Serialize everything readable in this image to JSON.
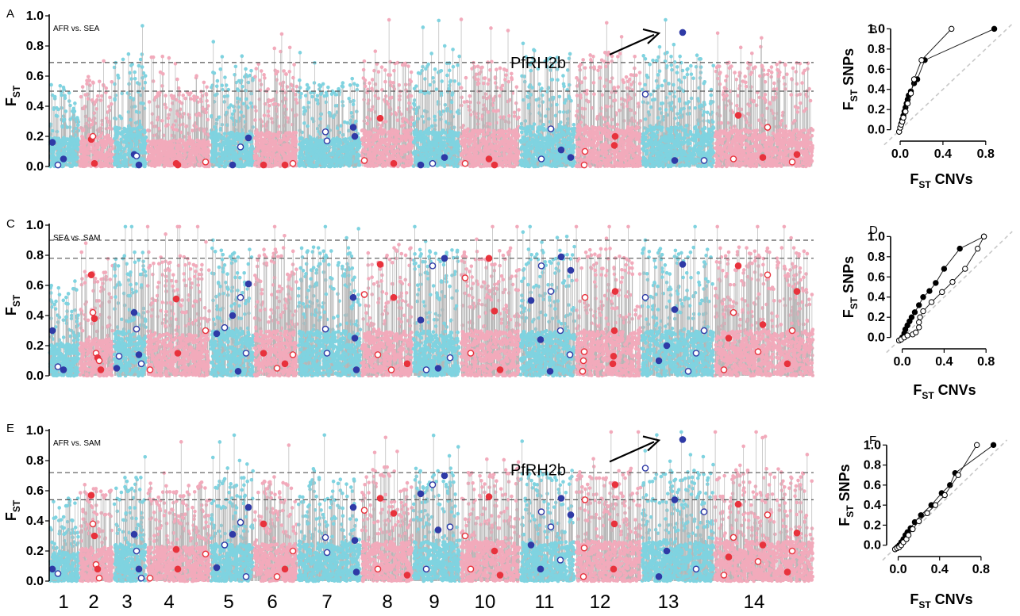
{
  "figure": {
    "chromosome_labels": [
      "1",
      "2",
      "3",
      "4",
      "5",
      "6",
      "7",
      "8",
      "9",
      "10",
      "11",
      "12",
      "13",
      "14"
    ],
    "colors": {
      "snp_blue": "#7fd3e0",
      "snp_pink": "#f2aabb",
      "stem_gray": "#b7b7b7",
      "cnv_blue": "#2f3aa6",
      "cnv_red": "#e8323c",
      "scatter_black": "#000000",
      "diagonal": "#c8c8c8"
    }
  },
  "chart_data": [
    {
      "panel": "A",
      "type": "scatter",
      "comparison_label": "AFR vs. SEA",
      "ylabel": "FST",
      "ylim": [
        0,
        1.0
      ],
      "yticks": [
        "0.0",
        "0.2",
        "0.4",
        "0.6",
        "0.8",
        "1.0"
      ],
      "threshold_lines": [
        0.69,
        0.5
      ],
      "annotation": "PfRH2b",
      "annotation_target": {
        "chromosome": 13,
        "fst": 0.89
      },
      "chromosome_order": [
        "1",
        "2",
        "3",
        "4",
        "5",
        "6",
        "7",
        "8",
        "9",
        "10",
        "11",
        "12",
        "13",
        "14"
      ],
      "snp_density": [
        0.55,
        0.6,
        0.75,
        0.5,
        0.65,
        0.65,
        0.55,
        0.7,
        0.7,
        0.7,
        0.75,
        0.75,
        0.75,
        0.7
      ],
      "cnv_values": {
        "1": [
          0.16,
          0.01,
          0.05
        ],
        "2": [
          0.18,
          0.2,
          0.02
        ],
        "3": [
          0.08,
          0.07,
          0.01
        ],
        "4": [
          0.02,
          0.03,
          0.01
        ],
        "5": [
          0.19,
          0.13,
          0.01
        ],
        "6": [
          0.01,
          0.02,
          0.01
        ],
        "7": [
          0.26,
          0.23,
          0.2,
          0.17
        ],
        "8": [
          0.32,
          0.04,
          0.02
        ],
        "9": [
          0.06,
          0.02,
          0.01
        ],
        "10": [
          0.05,
          0.02,
          0.01
        ],
        "11": [
          0.11,
          0.05,
          0.06,
          0.25
        ],
        "12": [
          0.2,
          0.1,
          0.14,
          0.01
        ],
        "13": [
          0.89,
          0.48,
          0.04,
          0.04
        ],
        "14": [
          0.34,
          0.26,
          0.08,
          0.05,
          0.06,
          0.03
        ]
      }
    },
    {
      "panel": "C",
      "type": "scatter",
      "comparison_label": "SEA vs. SAM",
      "ylabel": "FST",
      "ylim": [
        0,
        1.0
      ],
      "yticks": [
        "0.0",
        "0.2",
        "0.4",
        "0.6",
        "0.8",
        "1.0"
      ],
      "threshold_lines": [
        0.9,
        0.78
      ],
      "chromosome_order": [
        "1",
        "2",
        "3",
        "4",
        "5",
        "6",
        "7",
        "8",
        "9",
        "10",
        "11",
        "12",
        "13",
        "14"
      ],
      "snp_density": [
        0.6,
        0.7,
        0.85,
        0.8,
        0.85,
        0.85,
        0.85,
        0.85,
        0.85,
        0.85,
        0.85,
        0.85,
        0.85,
        0.85
      ],
      "cnv_values": {
        "1": [
          0.3,
          0.06,
          0.04
        ],
        "2": [
          0.67,
          0.42,
          0.38,
          0.15,
          0.12,
          0.1,
          0.04
        ],
        "3": [
          0.42,
          0.31,
          0.14,
          0.08,
          0.05,
          0.13
        ],
        "4": [
          0.51,
          0.3,
          0.15,
          0.04
        ],
        "5": [
          0.61,
          0.52,
          0.4,
          0.32,
          0.28,
          0.15,
          0.03
        ],
        "6": [
          0.15,
          0.14,
          0.08,
          0.05
        ],
        "7": [
          0.52,
          0.31,
          0.25,
          0.15,
          0.04
        ],
        "8": [
          0.74,
          0.54,
          0.52,
          0.14,
          0.08,
          0.04
        ],
        "9": [
          0.78,
          0.73,
          0.37,
          0.12,
          0.05,
          0.04
        ],
        "10": [
          0.78,
          0.65,
          0.43,
          0.15,
          0.04
        ],
        "11": [
          0.79,
          0.73,
          0.7,
          0.56,
          0.5,
          0.3,
          0.24,
          0.14,
          0.03
        ],
        "12": [
          0.56,
          0.52,
          0.3,
          0.16,
          0.13,
          0.1,
          0.08,
          0.03
        ],
        "13": [
          0.74,
          0.52,
          0.44,
          0.3,
          0.2,
          0.15,
          0.1,
          0.03
        ],
        "14": [
          0.73,
          0.67,
          0.56,
          0.42,
          0.34,
          0.3,
          0.25,
          0.16,
          0.08,
          0.04
        ]
      }
    },
    {
      "panel": "E",
      "type": "scatter",
      "comparison_label": "AFR vs. SAM",
      "ylabel": "FST",
      "ylim": [
        0,
        1.0
      ],
      "yticks": [
        "0.0",
        "0.2",
        "0.4",
        "0.6",
        "0.8",
        "1.0"
      ],
      "threshold_lines": [
        0.72,
        0.54
      ],
      "annotation": "PfRH2b",
      "annotation_target": {
        "chromosome": 13,
        "fst": 0.94
      },
      "chromosome_order": [
        "1",
        "2",
        "3",
        "4",
        "5",
        "6",
        "7",
        "8",
        "9",
        "10",
        "11",
        "12",
        "13",
        "14"
      ],
      "snp_density": [
        0.55,
        0.65,
        0.7,
        0.65,
        0.7,
        0.7,
        0.7,
        0.75,
        0.75,
        0.75,
        0.75,
        0.75,
        0.75,
        0.75
      ],
      "cnv_values": {
        "1": [
          0.08,
          0.05
        ],
        "2": [
          0.57,
          0.38,
          0.3,
          0.11,
          0.08,
          0.02
        ],
        "3": [
          0.31,
          0.2,
          0.08,
          0.02
        ],
        "4": [
          0.21,
          0.18,
          0.08,
          0.02
        ],
        "5": [
          0.49,
          0.39,
          0.31,
          0.24,
          0.09,
          0.03
        ],
        "6": [
          0.38,
          0.2,
          0.08,
          0.03
        ],
        "7": [
          0.49,
          0.29,
          0.27,
          0.19,
          0.06
        ],
        "8": [
          0.55,
          0.47,
          0.45,
          0.08,
          0.04
        ],
        "9": [
          0.7,
          0.64,
          0.58,
          0.36,
          0.34,
          0.08
        ],
        "10": [
          0.56,
          0.3,
          0.2,
          0.08,
          0.04
        ],
        "11": [
          0.55,
          0.46,
          0.44,
          0.36,
          0.24,
          0.14,
          0.08
        ],
        "12": [
          0.64,
          0.54,
          0.38,
          0.22,
          0.08,
          0.03
        ],
        "13": [
          0.94,
          0.75,
          0.54,
          0.46,
          0.2,
          0.08,
          0.03
        ],
        "14": [
          0.51,
          0.44,
          0.32,
          0.29,
          0.24,
          0.2,
          0.16,
          0.13,
          0.06,
          0.04
        ]
      }
    },
    {
      "panel": "B",
      "type": "line",
      "xlabel": "FST CNVs",
      "ylabel": "FST SNPs",
      "xlim": [
        -0.03,
        0.95
      ],
      "ylim": [
        -0.05,
        1.05
      ],
      "xticks": [
        "0.0",
        "0.4",
        "0.8"
      ],
      "yticks": [
        "0.0",
        "0.2",
        "0.4",
        "0.6",
        "0.8",
        "1.0"
      ],
      "series": [
        {
          "marker": "filled",
          "x": [
            -0.01,
            0.0,
            0.01,
            0.02,
            0.03,
            0.04,
            0.05,
            0.06,
            0.07,
            0.08,
            0.1,
            0.13,
            0.16,
            0.23,
            0.88
          ],
          "y": [
            -0.02,
            0.02,
            0.06,
            0.1,
            0.14,
            0.18,
            0.22,
            0.26,
            0.3,
            0.34,
            0.38,
            0.46,
            0.5,
            0.69,
            1.0
          ]
        },
        {
          "marker": "open",
          "x": [
            -0.01,
            0.0,
            0.01,
            0.02,
            0.03,
            0.05,
            0.07,
            0.1,
            0.13,
            0.2,
            0.48
          ],
          "y": [
            -0.02,
            0.02,
            0.05,
            0.08,
            0.12,
            0.18,
            0.26,
            0.36,
            0.5,
            0.69,
            1.0
          ]
        }
      ]
    },
    {
      "panel": "D",
      "type": "line",
      "xlabel": "FST CNVs",
      "ylabel": "FST SNPs",
      "xlim": [
        -0.05,
        0.95
      ],
      "ylim": [
        -0.05,
        1.05
      ],
      "xticks": [
        "0.0",
        "0.4",
        "0.8"
      ],
      "yticks": [
        "0.0",
        "0.2",
        "0.4",
        "0.6",
        "0.8",
        "1.0"
      ],
      "series": [
        {
          "marker": "filled",
          "x": [
            -0.03,
            -0.01,
            0.0,
            0.02,
            0.03,
            0.05,
            0.07,
            0.09,
            0.12,
            0.16,
            0.2,
            0.26,
            0.32,
            0.4,
            0.55,
            0.78
          ],
          "y": [
            -0.03,
            -0.02,
            0.0,
            0.04,
            0.08,
            0.12,
            0.16,
            0.2,
            0.25,
            0.32,
            0.4,
            0.46,
            0.54,
            0.68,
            0.88,
            1.0
          ]
        },
        {
          "marker": "open",
          "x": [
            -0.03,
            -0.01,
            0.02,
            0.05,
            0.1,
            0.13,
            0.16,
            0.16,
            0.17,
            0.2,
            0.28,
            0.38,
            0.48,
            0.6,
            0.72,
            0.78
          ],
          "y": [
            -0.03,
            -0.02,
            0.0,
            0.02,
            0.03,
            0.05,
            0.1,
            0.15,
            0.2,
            0.26,
            0.35,
            0.45,
            0.55,
            0.68,
            0.88,
            1.0
          ]
        }
      ]
    },
    {
      "panel": "F",
      "type": "line",
      "xlabel": "FST CNVs",
      "ylabel": "FST SNPs",
      "xlim": [
        -0.05,
        1.0
      ],
      "ylim": [
        -0.05,
        1.05
      ],
      "xticks": [
        "0.0",
        "0.4",
        "0.8"
      ],
      "yticks": [
        "0.0",
        "0.2",
        "0.4",
        "0.6",
        "0.8",
        "1.0"
      ],
      "series": [
        {
          "marker": "filled",
          "x": [
            -0.03,
            -0.01,
            0.01,
            0.03,
            0.05,
            0.07,
            0.09,
            0.12,
            0.16,
            0.22,
            0.32,
            0.42,
            0.5,
            0.55,
            0.92
          ],
          "y": [
            -0.04,
            -0.02,
            0.0,
            0.03,
            0.06,
            0.1,
            0.13,
            0.17,
            0.23,
            0.3,
            0.4,
            0.52,
            0.6,
            0.72,
            1.0
          ]
        },
        {
          "marker": "open",
          "x": [
            -0.03,
            -0.01,
            0.01,
            0.03,
            0.05,
            0.08,
            0.1,
            0.14,
            0.2,
            0.28,
            0.36,
            0.45,
            0.58,
            0.76
          ],
          "y": [
            -0.04,
            -0.03,
            -0.02,
            0.0,
            0.03,
            0.06,
            0.1,
            0.16,
            0.24,
            0.32,
            0.4,
            0.5,
            0.7,
            1.0
          ]
        }
      ]
    }
  ]
}
